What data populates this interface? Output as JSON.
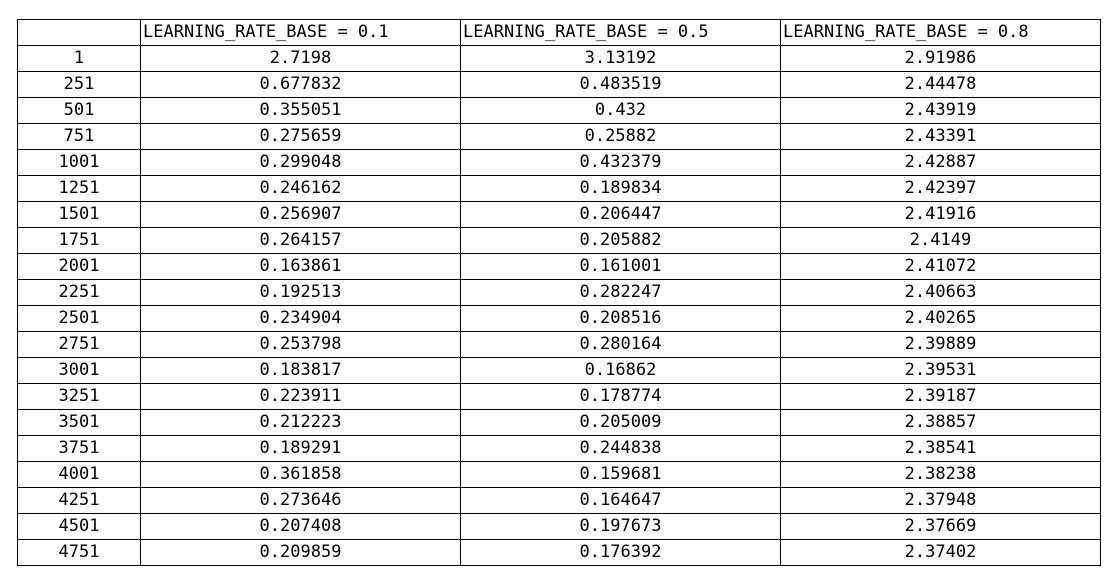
{
  "table": {
    "headers": [
      "",
      "LEARNING_RATE_BASE = 0.1",
      "LEARNING_RATE_BASE = 0.5",
      "LEARNING_RATE_BASE = 0.8"
    ],
    "rows": [
      [
        "1",
        "2.7198",
        "3.13192",
        "2.91986"
      ],
      [
        "251",
        "0.677832",
        "0.483519",
        "2.44478"
      ],
      [
        "501",
        "0.355051",
        "0.432",
        "2.43919"
      ],
      [
        "751",
        "0.275659",
        "0.25882",
        "2.43391"
      ],
      [
        "1001",
        "0.299048",
        "0.432379",
        "2.42887"
      ],
      [
        "1251",
        "0.246162",
        "0.189834",
        "2.42397"
      ],
      [
        "1501",
        "0.256907",
        "0.206447",
        "2.41916"
      ],
      [
        "1751",
        "0.264157",
        "0.205882",
        "2.4149"
      ],
      [
        "2001",
        "0.163861",
        "0.161001",
        "2.41072"
      ],
      [
        "2251",
        "0.192513",
        "0.282247",
        "2.40663"
      ],
      [
        "2501",
        "0.234904",
        "0.208516",
        "2.40265"
      ],
      [
        "2751",
        "0.253798",
        "0.280164",
        "2.39889"
      ],
      [
        "3001",
        "0.183817",
        "0.16862",
        "2.39531"
      ],
      [
        "3251",
        "0.223911",
        "0.178774",
        "2.39187"
      ],
      [
        "3501",
        "0.212223",
        "0.205009",
        "2.38857"
      ],
      [
        "3751",
        "0.189291",
        "0.244838",
        "2.38541"
      ],
      [
        "4001",
        "0.361858",
        "0.159681",
        "2.38238"
      ],
      [
        "4251",
        "0.273646",
        "0.164647",
        "2.37948"
      ],
      [
        "4501",
        "0.207408",
        "0.197673",
        "2.37669"
      ],
      [
        "4751",
        "0.209859",
        "0.176392",
        "2.37402"
      ]
    ]
  }
}
